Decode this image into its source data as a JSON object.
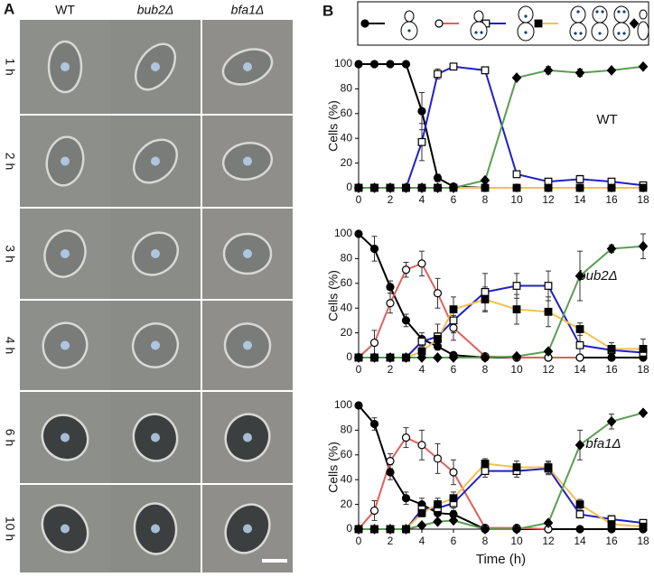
{
  "panel_a": {
    "label": "A",
    "columns": [
      "WT",
      "bub2Δ",
      "bfa1Δ"
    ],
    "rows": [
      "1 h",
      "2 h",
      "3 h",
      "4 h",
      "6 h",
      "10 h"
    ]
  },
  "panel_b": {
    "label": "B"
  },
  "chart_data": [
    {
      "type": "line",
      "annotation": "WT",
      "y_label": "Cells (%)",
      "x": [
        0,
        1,
        2,
        3,
        4,
        5,
        6,
        8,
        10,
        12,
        14,
        16,
        18
      ],
      "xlim": [
        0,
        18
      ],
      "xticks": [
        0,
        2,
        4,
        6,
        8,
        10,
        12,
        14,
        16,
        18
      ],
      "ylim": [
        0,
        100
      ],
      "yticks": [
        0,
        20,
        40,
        60,
        80,
        100
      ],
      "series": [
        {
          "color": "#000000",
          "marker": "circle",
          "marker_fill": "#000000",
          "values": [
            100,
            100,
            100,
            100,
            62,
            8,
            1,
            0,
            0,
            0,
            0,
            0,
            0
          ],
          "errors": [
            null,
            null,
            null,
            null,
            15,
            3,
            null,
            null,
            null,
            null,
            null,
            null,
            null
          ]
        },
        {
          "color": "#e0605a",
          "marker": "circle",
          "marker_fill": "#ffffff",
          "values": [
            0,
            0,
            0,
            0,
            0,
            0,
            0,
            0,
            0,
            0,
            0,
            0,
            0
          ],
          "errors": [
            null,
            null,
            null,
            null,
            null,
            null,
            null,
            null,
            null,
            null,
            null,
            null,
            null
          ]
        },
        {
          "color": "#2020c8",
          "marker": "square",
          "marker_fill": "#ffffff",
          "values": [
            0,
            0,
            0,
            0,
            37,
            92,
            98,
            95,
            11,
            5,
            7,
            5,
            2
          ],
          "errors": [
            null,
            null,
            null,
            null,
            15,
            4,
            null,
            null,
            null,
            2,
            3,
            null,
            null
          ]
        },
        {
          "color": "#f2c14e",
          "marker": "square",
          "marker_fill": "#000000",
          "values": [
            0,
            0,
            0,
            0,
            0,
            0,
            0,
            0,
            0,
            0,
            0,
            0,
            0
          ],
          "errors": [
            null,
            null,
            null,
            null,
            null,
            null,
            null,
            null,
            null,
            null,
            null,
            null,
            null
          ]
        },
        {
          "color": "#5a9e52",
          "marker": "diamond",
          "marker_fill": "#000000",
          "values": [
            0,
            0,
            0,
            0,
            0,
            0,
            0,
            6,
            89,
            95,
            93,
            95,
            98
          ],
          "errors": [
            null,
            null,
            null,
            null,
            null,
            null,
            null,
            null,
            null,
            3,
            3,
            null,
            null
          ]
        }
      ]
    },
    {
      "type": "line",
      "annotation": "bub2Δ",
      "y_label": "Cells (%)",
      "x": [
        0,
        1,
        2,
        3,
        4,
        5,
        6,
        8,
        10,
        12,
        14,
        16,
        18
      ],
      "xlim": [
        0,
        18
      ],
      "xticks": [
        0,
        2,
        4,
        6,
        8,
        10,
        12,
        14,
        16,
        18
      ],
      "ylim": [
        0,
        100
      ],
      "yticks": [
        0,
        20,
        40,
        60,
        80,
        100
      ],
      "series": [
        {
          "color": "#000000",
          "marker": "circle",
          "marker_fill": "#000000",
          "values": [
            100,
            88,
            57,
            30,
            15,
            9,
            2,
            0,
            0,
            0,
            0,
            0,
            0
          ],
          "errors": [
            null,
            10,
            5,
            5,
            5,
            3,
            null,
            null,
            null,
            null,
            null,
            null,
            null
          ]
        },
        {
          "color": "#e0605a",
          "marker": "circle",
          "marker_fill": "#ffffff",
          "values": [
            0,
            12,
            44,
            71,
            76,
            52,
            24,
            1,
            0,
            0,
            0,
            null,
            null
          ],
          "errors": [
            null,
            10,
            8,
            6,
            10,
            12,
            10,
            null,
            null,
            null,
            null,
            null,
            null
          ]
        },
        {
          "color": "#2020c8",
          "marker": "square",
          "marker_fill": "#ffffff",
          "values": [
            0,
            0,
            0,
            0,
            13,
            17,
            30,
            53,
            58,
            58,
            10,
            6,
            4
          ],
          "errors": [
            null,
            null,
            null,
            null,
            4,
            10,
            10,
            15,
            10,
            12,
            12,
            3,
            3
          ]
        },
        {
          "color": "#f2c14e",
          "marker": "square",
          "marker_fill": "#000000",
          "values": [
            0,
            0,
            0,
            0,
            5,
            15,
            39,
            47,
            39,
            37,
            23,
            7,
            7
          ],
          "errors": [
            null,
            null,
            null,
            null,
            3,
            5,
            10,
            10,
            12,
            12,
            5,
            5,
            8
          ]
        },
        {
          "color": "#5a9e52",
          "marker": "diamond",
          "marker_fill": "#000000",
          "values": [
            0,
            0,
            0,
            0,
            0,
            0,
            0,
            0,
            1,
            5,
            66,
            88,
            90
          ],
          "errors": [
            null,
            null,
            null,
            null,
            null,
            null,
            null,
            null,
            null,
            null,
            20,
            3,
            10
          ]
        }
      ]
    },
    {
      "type": "line",
      "annotation": "bfa1Δ",
      "y_label": "Cells (%)",
      "x_label": "Time (h)",
      "x": [
        0,
        1,
        2,
        3,
        4,
        5,
        6,
        8,
        10,
        12,
        14,
        16,
        18
      ],
      "xlim": [
        0,
        18
      ],
      "xticks": [
        0,
        2,
        4,
        6,
        8,
        10,
        12,
        14,
        16,
        18
      ],
      "ylim": [
        0,
        100
      ],
      "yticks": [
        0,
        20,
        40,
        60,
        80,
        100
      ],
      "series": [
        {
          "color": "#000000",
          "marker": "circle",
          "marker_fill": "#000000",
          "values": [
            100,
            85,
            46,
            25,
            20,
            13,
            12,
            0,
            0,
            0,
            0,
            0,
            0
          ],
          "errors": [
            null,
            5,
            6,
            5,
            5,
            5,
            5,
            null,
            null,
            null,
            null,
            null,
            null
          ]
        },
        {
          "color": "#e0605a",
          "marker": "circle",
          "marker_fill": "#ffffff",
          "values": [
            0,
            15,
            55,
            74,
            68,
            57,
            46,
            1,
            1,
            0,
            null,
            null,
            null
          ],
          "errors": [
            null,
            8,
            6,
            8,
            12,
            12,
            10,
            null,
            null,
            null,
            null,
            null,
            null
          ]
        },
        {
          "color": "#2020c8",
          "marker": "square",
          "marker_fill": "#ffffff",
          "values": [
            0,
            0,
            0,
            0,
            16,
            17,
            21,
            47,
            47,
            49,
            12,
            8,
            5
          ],
          "errors": [
            null,
            null,
            null,
            null,
            4,
            6,
            6,
            5,
            5,
            5,
            3,
            3,
            2
          ]
        },
        {
          "color": "#f2c14e",
          "marker": "square",
          "marker_fill": "#000000",
          "values": [
            0,
            0,
            0,
            0,
            13,
            20,
            25,
            53,
            50,
            50,
            20,
            4,
            2
          ],
          "errors": [
            null,
            null,
            null,
            null,
            3,
            5,
            5,
            4,
            5,
            5,
            4,
            2,
            2
          ]
        },
        {
          "color": "#5a9e52",
          "marker": "diamond",
          "marker_fill": "#000000",
          "values": [
            0,
            0,
            0,
            0,
            3,
            6,
            7,
            0,
            0,
            5,
            68,
            87,
            94
          ],
          "errors": [
            null,
            null,
            null,
            null,
            null,
            null,
            null,
            null,
            null,
            null,
            12,
            6,
            null
          ]
        }
      ]
    }
  ]
}
